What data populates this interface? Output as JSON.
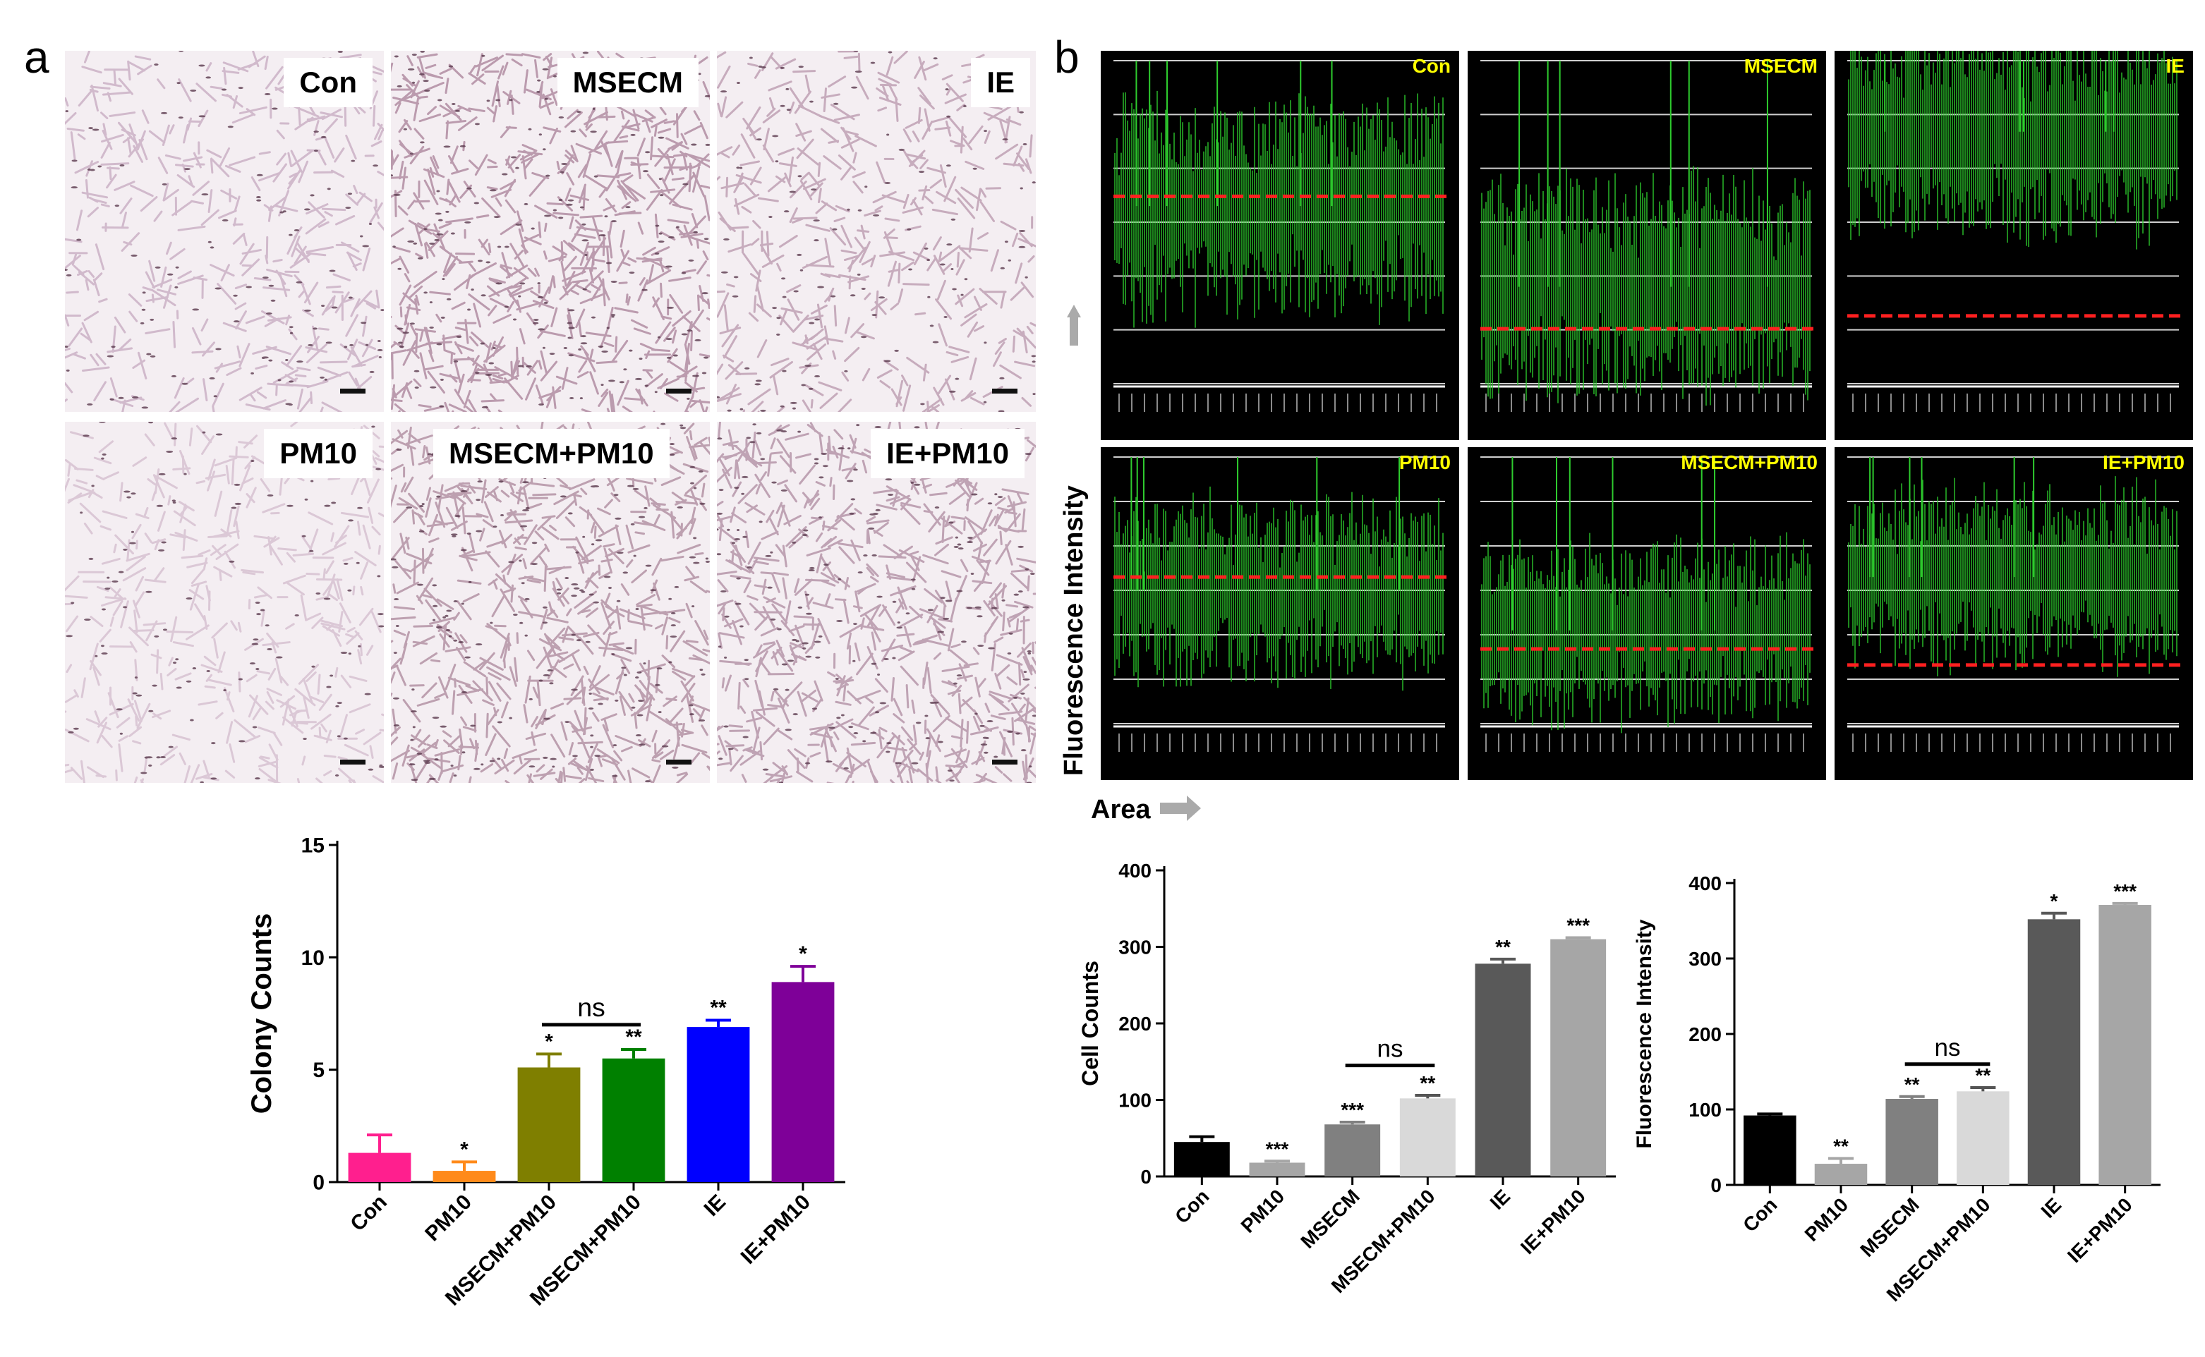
{
  "panels": {
    "a": "a",
    "b": "b"
  },
  "micrographs": [
    {
      "label": "Con",
      "tone": "#c6a9c0"
    },
    {
      "label": "MSECM",
      "tone": "#a98098"
    },
    {
      "label": "IE",
      "tone": "#b896ac"
    },
    {
      "label": "PM10",
      "tone": "#d3bccd"
    },
    {
      "label": "MSECM+PM10",
      "tone": "#ab869a"
    },
    {
      "label": "IE+PM10",
      "tone": "#ae8aa0"
    }
  ],
  "fluorescence": {
    "y_axis_label": "Fluorescence Intensity",
    "x_axis_label": "Area",
    "panels": [
      {
        "label": "Con",
        "green_mean": 0.55,
        "red_line": 0.42
      },
      {
        "label": "MSECM",
        "green_mean": 0.3,
        "red_line": 0.83
      },
      {
        "label": "IE",
        "green_mean": 0.78,
        "red_line": 0.79
      },
      {
        "label": "PM10",
        "green_mean": 0.5,
        "red_line": 0.45
      },
      {
        "label": "MSECM+PM10",
        "green_mean": 0.35,
        "red_line": 0.72
      },
      {
        "label": "IE+PM10",
        "green_mean": 0.55,
        "red_line": 0.78
      }
    ]
  },
  "chart_data": [
    {
      "type": "bar",
      "title": "",
      "ylabel": "Colony Counts",
      "xlabel": "",
      "ylim": [
        0,
        15
      ],
      "yticks": [
        0,
        5,
        10,
        15
      ],
      "categories": [
        "Con",
        "PM10",
        "MSECM+PM10",
        "MSECM+PM10",
        "IE",
        "IE+PM10"
      ],
      "values": [
        1.3,
        0.5,
        5.1,
        5.5,
        6.9,
        8.9
      ],
      "errors": [
        0.8,
        0.4,
        0.6,
        0.4,
        0.3,
        0.7
      ],
      "significance": [
        "",
        "*",
        "*",
        "**",
        "**",
        "*"
      ],
      "colors": [
        "#ff1f8e",
        "#ff8a1a",
        "#7f7f00",
        "#008000",
        "#0000ff",
        "#7e0098"
      ],
      "bracket": {
        "from": 2,
        "to": 3,
        "label": "ns",
        "y": 7
      }
    },
    {
      "type": "bar",
      "title": "",
      "ylabel": "Cell Counts",
      "xlabel": "",
      "ylim": [
        0,
        400
      ],
      "yticks": [
        0,
        100,
        200,
        300,
        400
      ],
      "categories": [
        "Con",
        "PM10",
        "MSECM",
        "MSECM+PM10",
        "IE",
        "IE+PM10"
      ],
      "values": [
        45,
        18,
        68,
        102,
        278,
        310
      ],
      "errors": [
        7,
        2,
        3,
        4,
        6,
        2
      ],
      "significance": [
        "",
        "***",
        "***",
        "**",
        "**",
        "***"
      ],
      "colors": [
        "#000000",
        "#a6a6a6",
        "#808080",
        "#d9d9d9",
        "#595959",
        "#a6a6a6"
      ],
      "bracket": {
        "from": 2,
        "to": 3,
        "label": "ns",
        "y": 145
      }
    },
    {
      "type": "bar",
      "title": "",
      "ylabel": "Fluorescence Intensity",
      "xlabel": "",
      "ylim": [
        0,
        400
      ],
      "yticks": [
        0,
        100,
        200,
        300,
        400
      ],
      "categories": [
        "Con",
        "PM10",
        "MSECM",
        "MSECM+PM10",
        "IE",
        "IE+PM10"
      ],
      "values": [
        92,
        28,
        114,
        124,
        352,
        371
      ],
      "errors": [
        2,
        7,
        3,
        5,
        8,
        2
      ],
      "significance": [
        "",
        "**",
        "**",
        "**",
        "*",
        "***"
      ],
      "colors": [
        "#000000",
        "#a6a6a6",
        "#808080",
        "#d9d9d9",
        "#595959",
        "#a6a6a6"
      ],
      "bracket": {
        "from": 2,
        "to": 3,
        "label": "ns",
        "y": 160
      }
    }
  ]
}
